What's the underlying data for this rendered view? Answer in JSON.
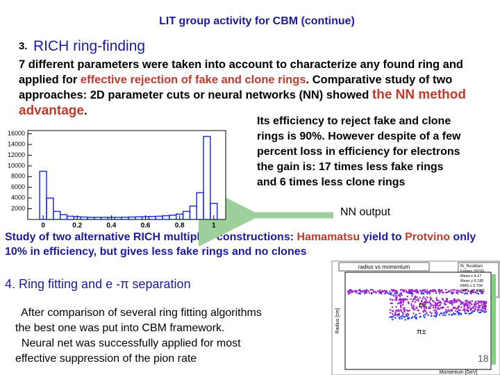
{
  "header": {
    "title": "LIT group activity for CBM (continue)"
  },
  "section3": {
    "number": "3.",
    "title": "RICH ring-finding"
  },
  "paragraph1": [
    {
      "text": "7 different parameters were taken into account to characterize any found ring and applied for ",
      "highlight": false
    },
    {
      "text": "effective rejection of fake and clone rings",
      "highlight": true
    },
    {
      "text": ". Comparative study of two approaches: 2D parameter cuts or neural networks (NN) showed ",
      "highlight": false
    },
    {
      "text": "the NN method advantage",
      "highlight": true,
      "large": true
    },
    {
      "text": ".",
      "highlight": false
    }
  ],
  "efficiency_text": [
    "Its efficiency to reject fake and clone",
    "rings is 90%. However despite of a few",
    "percent loss in efficiency for electrons",
    "the gain is: 17 times less fake rings",
    "and  6 times less clone rings"
  ],
  "histogram": {
    "label": "NN output",
    "bins": [
      -0.02,
      0.02,
      0.06,
      0.1,
      0.14,
      0.18,
      0.22,
      0.26,
      0.3,
      0.34,
      0.38,
      0.42,
      0.46,
      0.5,
      0.54,
      0.58,
      0.62,
      0.66,
      0.7,
      0.74,
      0.78,
      0.82,
      0.86,
      0.9,
      0.94,
      0.98,
      1.02
    ],
    "counts": [
      9000,
      4000,
      1500,
      900,
      600,
      500,
      450,
      400,
      400,
      400,
      400,
      400,
      420,
      450,
      480,
      500,
      550,
      600,
      700,
      800,
      1000,
      1500,
      2500,
      5000,
      15500,
      3000
    ],
    "xlim": [
      -0.09,
      1.07
    ],
    "ylim": [
      0,
      16600
    ],
    "xticks": [
      0,
      0.2,
      0.4,
      0.6,
      0.8,
      1
    ],
    "yticks": [
      2000,
      4000,
      6000,
      8000,
      10000,
      12000,
      14000,
      16000
    ]
  },
  "study": [
    {
      "text": "Study of two alternative RICH multiplier constructions: ",
      "highlight": false
    },
    {
      "text": "Hamamatsu",
      "highlight": true
    },
    {
      "text": " yield to ",
      "highlight": false
    },
    {
      "text": "Protvino",
      "highlight": true
    },
    {
      "text": " only 10%  in efficiency, but gives less fake rings and no clones",
      "highlight": false
    }
  ],
  "section4": {
    "title": "4. Ring fitting and e -π separation"
  },
  "paragraph4": [
    "  After comparison of several ring fitting algorithms",
    "the best one was put into CBM framework.",
    "  Neural net was successfully applied for most",
    "effective suppression of the pion rate"
  ],
  "scatter_plot": {
    "title": "radius vs momentum",
    "name": "fh_RvsMom",
    "stats": [
      "Entries 28793",
      "Mean x 4.17",
      "Mean y 6.185",
      "RMS x 3.704",
      "RMS y 0.6905"
    ],
    "x_label": "Momentum [GeV]",
    "y_label": "Radius [cm]",
    "electron_label": "e±",
    "pion_label": "π±"
  },
  "page_number": "18"
}
